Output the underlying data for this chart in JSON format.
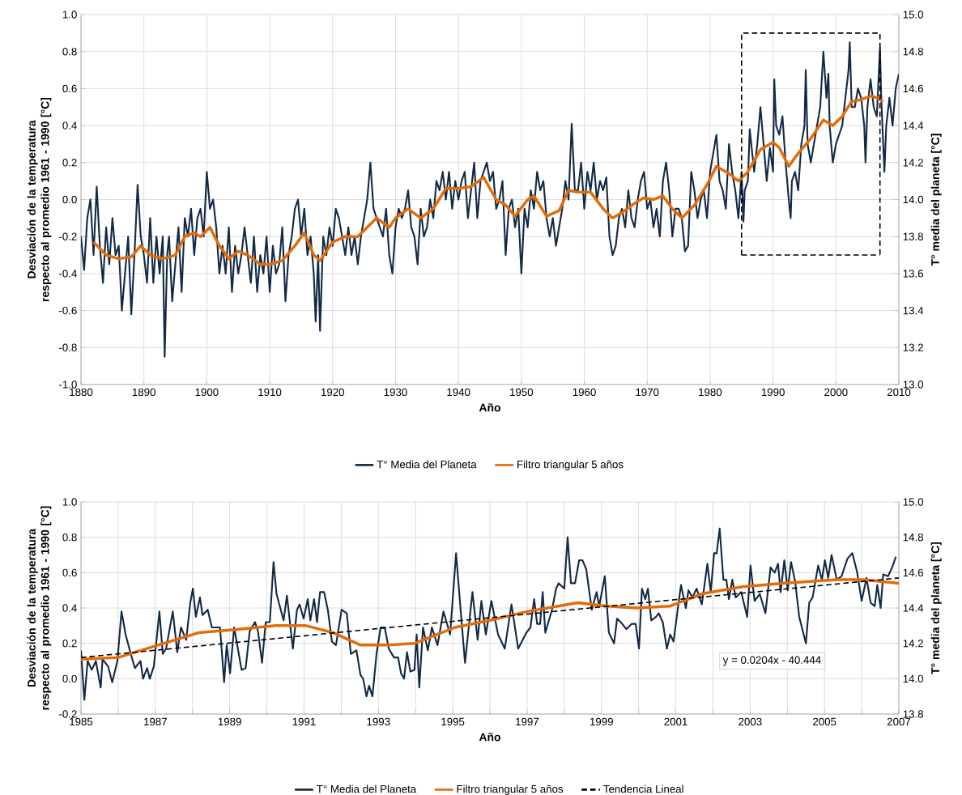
{
  "chart_data": [
    {
      "type": "line",
      "xlabel": "Año",
      "ylabel": "Desviación de la temperatura respecto al promedio 1961 - 1990 [°C]",
      "y2label": "T° media del planeta [°C]",
      "xlim": [
        1880,
        2010
      ],
      "xticks": [
        1880,
        1890,
        1900,
        1910,
        1920,
        1930,
        1940,
        1950,
        1960,
        1970,
        1980,
        1990,
        2000,
        2010
      ],
      "ylim": [
        -1,
        1
      ],
      "yticks": [
        {
          "value": -1,
          "label": "-1.0"
        },
        {
          "value": -0.8,
          "label": "-0.8"
        },
        {
          "value": -0.6,
          "label": "-0.6"
        },
        {
          "value": -0.4,
          "label": "-0.4"
        },
        {
          "value": -0.2,
          "label": "-0.2"
        },
        {
          "value": 0,
          "label": "0.0"
        },
        {
          "value": 0.2,
          "label": "0.2"
        },
        {
          "value": 0.4,
          "label": "0.4"
        },
        {
          "value": 0.6,
          "label": "0.6"
        },
        {
          "value": 0.8,
          "label": "0.8"
        },
        {
          "value": 1,
          "label": "1.0"
        }
      ],
      "y2lim": [
        13,
        15
      ],
      "y2ticks": [
        {
          "value": 13,
          "label": "13.0"
        },
        {
          "value": 13.2,
          "label": "13.2"
        },
        {
          "value": 13.4,
          "label": "13.4"
        },
        {
          "value": 13.6,
          "label": "13.6"
        },
        {
          "value": 13.8,
          "label": "13.8"
        },
        {
          "value": 14,
          "label": "14.0"
        },
        {
          "value": 14.2,
          "label": "14.2"
        },
        {
          "value": 14.4,
          "label": "14.4"
        },
        {
          "value": 14.6,
          "label": "14.6"
        },
        {
          "value": 14.8,
          "label": "14.8"
        },
        {
          "value": 15,
          "label": "15.0"
        }
      ],
      "grid": true,
      "legend": "bottom",
      "series": [
        {
          "name": "T° Media del Planeta",
          "color": "#132a47",
          "x": [
            1880,
            1880.5,
            1881,
            1881.5,
            1882,
            1882.5,
            1883,
            1883.5,
            1884,
            1884.5,
            1885,
            1885.5,
            1886,
            1886.5,
            1887,
            1887.5,
            1888,
            1888.5,
            1889,
            1889.5,
            1890,
            1890.5,
            1891,
            1891.5,
            1892,
            1892.5,
            1893,
            1893.3,
            1893.7,
            1894,
            1894.5,
            1895,
            1895.5,
            1896,
            1896.5,
            1897,
            1897.5,
            1898,
            1898.5,
            1899,
            1899.5,
            1900,
            1900.5,
            1901,
            1901.5,
            1902,
            1902.5,
            1903,
            1903.5,
            1904,
            1904.5,
            1905,
            1905.5,
            1906,
            1906.5,
            1907,
            1907.5,
            1908,
            1908.5,
            1909,
            1909.5,
            1910,
            1910.5,
            1911,
            1911.5,
            1912,
            1912.5,
            1913,
            1913.5,
            1914,
            1914.5,
            1915,
            1915.5,
            1916,
            1916.5,
            1917,
            1917.3,
            1917.7,
            1918,
            1918.5,
            1919,
            1919.5,
            1920,
            1920.5,
            1921,
            1921.5,
            1922,
            1922.5,
            1923,
            1923.5,
            1924,
            1924.5,
            1925,
            1925.5,
            1926,
            1926.5,
            1927,
            1927.5,
            1928,
            1928.5,
            1929,
            1929.5,
            1930,
            1930.5,
            1931,
            1931.5,
            1932,
            1932.5,
            1933,
            1933.5,
            1934,
            1934.5,
            1935,
            1935.5,
            1936,
            1936.5,
            1937,
            1937.5,
            1938,
            1938.5,
            1939,
            1939.5,
            1940,
            1940.5,
            1941,
            1941.5,
            1942,
            1942.5,
            1943,
            1943.5,
            1944,
            1944.5,
            1945,
            1945.5,
            1946,
            1946.5,
            1947,
            1947.5,
            1948,
            1948.5,
            1949,
            1949.5,
            1950,
            1950.5,
            1951,
            1951.5,
            1952,
            1952.5,
            1953,
            1953.5,
            1954,
            1954.5,
            1955,
            1955.5,
            1956,
            1956.5,
            1957,
            1957.5,
            1958,
            1958.5,
            1959,
            1959.5,
            1960,
            1960.5,
            1961,
            1961.5,
            1962,
            1962.5,
            1963,
            1963.5,
            1964,
            1964.5,
            1965,
            1965.5,
            1966,
            1966.5,
            1967,
            1967.5,
            1968,
            1968.5,
            1969,
            1969.5,
            1970,
            1970.5,
            1971,
            1971.5,
            1972,
            1972.5,
            1973,
            1973.5,
            1974,
            1974.5,
            1975,
            1975.5,
            1976,
            1976.5,
            1977,
            1977.5,
            1978,
            1978.5,
            1979,
            1979.5,
            1980,
            1980.5,
            1981,
            1981.5,
            1982,
            1982.5,
            1983,
            1983.5,
            1984,
            1984.5,
            1985,
            1985.3,
            1985.5,
            1986,
            1986.3,
            1987,
            1987.5,
            1988,
            1988.5,
            1989,
            1989.5,
            1990,
            1990.2,
            1990.5,
            1991,
            1991.5,
            1992,
            1992.5,
            1992.8,
            1993,
            1993.5,
            1994,
            1994.5,
            1995,
            1995.2,
            1995.5,
            1996,
            1996.5,
            1997,
            1997.5,
            1998,
            1998.5,
            1998.8,
            1999,
            1999.5,
            2000,
            2000.5,
            2001,
            2001.5,
            2002,
            2002.2,
            2002.5,
            2003,
            2003.5,
            2004,
            2004.5,
            2004.7,
            2005,
            2005.5,
            2006,
            2006.5,
            2007,
            2007.2,
            2007.7,
            2008,
            2008.5,
            2009,
            2009.5,
            2010
          ],
          "values": [
            -0.2,
            -0.38,
            -0.1,
            0.0,
            -0.3,
            0.07,
            -0.25,
            -0.45,
            -0.15,
            -0.35,
            -0.1,
            -0.3,
            -0.25,
            -0.6,
            -0.4,
            -0.2,
            -0.62,
            -0.3,
            0.08,
            -0.2,
            -0.3,
            -0.45,
            -0.1,
            -0.45,
            -0.2,
            -0.4,
            -0.2,
            -0.85,
            -0.3,
            -0.2,
            -0.55,
            -0.35,
            -0.15,
            -0.5,
            -0.1,
            -0.2,
            -0.05,
            -0.3,
            -0.1,
            -0.05,
            -0.2,
            0.15,
            -0.05,
            0.0,
            -0.15,
            -0.4,
            -0.25,
            -0.4,
            -0.15,
            -0.5,
            -0.25,
            -0.4,
            -0.3,
            -0.15,
            -0.3,
            -0.45,
            -0.2,
            -0.5,
            -0.3,
            -0.4,
            -0.2,
            -0.5,
            -0.25,
            -0.4,
            -0.35,
            -0.15,
            -0.55,
            -0.3,
            -0.2,
            -0.05,
            0.0,
            -0.2,
            -0.05,
            -0.3,
            -0.2,
            -0.4,
            -0.66,
            -0.3,
            -0.71,
            -0.2,
            -0.3,
            -0.15,
            -0.25,
            -0.05,
            -0.1,
            -0.2,
            -0.3,
            -0.15,
            -0.3,
            -0.2,
            -0.35,
            -0.2,
            -0.1,
            0.0,
            0.2,
            -0.05,
            -0.1,
            -0.15,
            -0.2,
            -0.05,
            -0.3,
            -0.4,
            -0.15,
            -0.05,
            -0.1,
            -0.05,
            0.05,
            -0.15,
            -0.2,
            -0.35,
            -0.05,
            -0.2,
            -0.15,
            0.0,
            -0.1,
            0.1,
            0.05,
            0.15,
            0.0,
            0.15,
            -0.05,
            0.1,
            0.0,
            0.1,
            0.15,
            -0.1,
            0.05,
            0.2,
            -0.1,
            0.1,
            0.15,
            0.2,
            0.1,
            0.15,
            -0.05,
            0.0,
            0.1,
            -0.3,
            -0.05,
            0.0,
            -0.15,
            -0.05,
            -0.4,
            -0.05,
            -0.15,
            0.05,
            -0.05,
            0.15,
            0.05,
            0.1,
            -0.1,
            -0.2,
            -0.1,
            -0.25,
            -0.15,
            -0.05,
            0.1,
            0.0,
            0.41,
            0.05,
            0.05,
            0.2,
            -0.05,
            0.15,
            0.05,
            0.2,
            0.0,
            0.1,
            0.05,
            0.12,
            -0.2,
            -0.3,
            -0.25,
            -0.1,
            -0.05,
            -0.15,
            0.05,
            -0.1,
            -0.15,
            0.0,
            0.1,
            0.15,
            -0.05,
            0.0,
            -0.15,
            -0.05,
            -0.2,
            0.1,
            0.2,
            0.05,
            -0.2,
            -0.05,
            -0.05,
            -0.1,
            -0.28,
            -0.25,
            0.15,
            0.05,
            -0.1,
            0.0,
            0.05,
            -0.1,
            0.15,
            0.25,
            0.35,
            0.1,
            0.05,
            -0.05,
            0.3,
            0.15,
            0.05,
            -0.1,
            0.15,
            -0.12,
            0.05,
            0.1,
            0.38,
            0.15,
            0.3,
            0.5,
            0.3,
            0.1,
            0.28,
            0.15,
            0.65,
            0.4,
            0.35,
            0.45,
            0.2,
            0.0,
            -0.1,
            0.1,
            0.15,
            0.05,
            0.3,
            0.4,
            0.7,
            0.3,
            0.2,
            0.3,
            0.4,
            0.5,
            0.8,
            0.55,
            0.68,
            0.4,
            0.2,
            0.3,
            0.35,
            0.4,
            0.55,
            0.7,
            0.85,
            0.5,
            0.5,
            0.6,
            0.55,
            0.4,
            0.2,
            0.5,
            0.65,
            0.5,
            0.45,
            0.82,
            0.55,
            0.15,
            0.4,
            0.55,
            0.4,
            0.6,
            0.68
          ]
        },
        {
          "name": "Filtro triangular 5 años",
          "color": "#e36c09",
          "x": [
            1882,
            1884,
            1886,
            1888,
            1889.5,
            1891,
            1893,
            1895,
            1896.5,
            1898,
            1899,
            1900.5,
            1902,
            1903.5,
            1905,
            1906.5,
            1908.5,
            1910,
            1912,
            1914,
            1915.5,
            1917,
            1918,
            1920,
            1922,
            1924,
            1925.5,
            1927,
            1929,
            1930,
            1932,
            1934,
            1936,
            1938,
            1940,
            1942,
            1944,
            1946,
            1947.5,
            1949,
            1951,
            1952,
            1954,
            1956,
            1957.5,
            1959,
            1961,
            1963,
            1964.5,
            1966,
            1968,
            1969.5,
            1971,
            1972.5,
            1974,
            1975.5,
            1977.5,
            1979.5,
            1981,
            1983,
            1984.5,
            1986,
            1988,
            1990,
            1991,
            1992.5,
            1994,
            1996,
            1998,
            1999.5,
            2001,
            2002.5,
            2004,
            2005.5,
            2006.5,
            2007.5
          ],
          "values": [
            -0.23,
            -0.3,
            -0.32,
            -0.31,
            -0.25,
            -0.3,
            -0.32,
            -0.3,
            -0.2,
            -0.18,
            -0.2,
            -0.15,
            -0.25,
            -0.32,
            -0.28,
            -0.3,
            -0.35,
            -0.35,
            -0.33,
            -0.25,
            -0.18,
            -0.3,
            -0.33,
            -0.23,
            -0.2,
            -0.2,
            -0.15,
            -0.1,
            -0.15,
            -0.1,
            -0.05,
            -0.1,
            -0.05,
            0.06,
            0.06,
            0.07,
            0.12,
            0.0,
            -0.03,
            -0.09,
            0.0,
            0.02,
            -0.09,
            -0.06,
            0.05,
            0.04,
            0.04,
            -0.05,
            -0.1,
            -0.07,
            -0.02,
            0.01,
            0.0,
            0.02,
            -0.05,
            -0.1,
            -0.03,
            0.08,
            0.18,
            0.14,
            0.1,
            0.15,
            0.27,
            0.31,
            0.28,
            0.18,
            0.25,
            0.33,
            0.43,
            0.4,
            0.45,
            0.53,
            0.54,
            0.56,
            0.55,
            0.53
          ]
        },
        {
          "type": "line",
          "color": "#000000",
          "line_style": "dashed",
          "x": [
            1985,
            1985,
            2007,
            2007
          ],
          "values": [
            -0.3,
            0.9,
            0.9,
            -0.3
          ]
        },
        {
          "type": "line",
          "color": "#000000",
          "line_style": "dashed",
          "x": [
            1985,
            2007
          ],
          "values": [
            -0.3,
            -0.3
          ]
        }
      ]
    },
    {
      "type": "line",
      "xlabel": "Año",
      "ylabel": "Desviación de la temperatura respecto al promedio 1961 - 1990 [°C]",
      "y2label": "T° media del planeta [°C]",
      "xlim": [
        1985,
        2007
      ],
      "xticks": [
        1985,
        {
          "value": 1986,
          "label": null
        },
        1987,
        {
          "value": 1988,
          "label": null
        },
        1989,
        {
          "value": 1990,
          "label": null
        },
        1991,
        {
          "value": 1992,
          "label": null
        },
        1993,
        {
          "value": 1994,
          "label": null
        },
        1995,
        {
          "value": 1996,
          "label": null
        },
        1997,
        {
          "value": 1998,
          "label": null
        },
        1999,
        {
          "value": 2000,
          "label": null
        },
        2001,
        {
          "value": 2002,
          "label": null
        },
        2003,
        {
          "value": 2004,
          "label": null
        },
        2005,
        {
          "value": 2006,
          "label": null
        },
        2007
      ],
      "ylim": [
        -0.2,
        1
      ],
      "yticks": [
        {
          "value": -0.2,
          "label": "-0.2"
        },
        {
          "value": 0,
          "label": "0.0"
        },
        {
          "value": 0.2,
          "label": "0.2"
        },
        {
          "value": 0.4,
          "label": "0.4"
        },
        {
          "value": 0.6,
          "label": "0.6"
        },
        {
          "value": 0.8,
          "label": "0.8"
        },
        {
          "value": 1,
          "label": "1.0"
        }
      ],
      "y2lim": [
        13.8,
        15
      ],
      "y2ticks": [
        {
          "value": 13.8,
          "label": "13.8"
        },
        {
          "value": 14,
          "label": "14.0"
        },
        {
          "value": 14.2,
          "label": "14.2"
        },
        {
          "value": 14.4,
          "label": "14.4"
        },
        {
          "value": 14.6,
          "label": "14.6"
        },
        {
          "value": 14.8,
          "label": "14.8"
        },
        {
          "value": 15,
          "label": "15.0"
        }
      ],
      "grid": true,
      "legend": "bottom",
      "annotations": [
        "y = 0.0204x - 40.444"
      ],
      "series": [
        {
          "name": "T° Media del Planeta",
          "color": "#132a47",
          "x": [
            1985.0,
            1985.09,
            1985.18,
            1985.29,
            1985.4,
            1985.53,
            1985.58,
            1985.73,
            1985.84,
            1985.98,
            1986.09,
            1986.2,
            1986.34,
            1986.45,
            1986.6,
            1986.67,
            1986.78,
            1986.85,
            1986.96,
            1987.11,
            1987.2,
            1987.29,
            1987.47,
            1987.59,
            1987.69,
            1987.83,
            1987.94,
            1988.01,
            1988.09,
            1988.2,
            1988.27,
            1988.41,
            1988.52,
            1988.74,
            1988.85,
            1988.92,
            1989.01,
            1989.12,
            1989.32,
            1989.43,
            1989.54,
            1989.68,
            1989.76,
            1989.87,
            1989.97,
            1990.08,
            1990.18,
            1990.26,
            1990.45,
            1990.54,
            1990.7,
            1990.81,
            1990.88,
            1990.99,
            1991.1,
            1991.17,
            1991.27,
            1991.35,
            1991.43,
            1991.54,
            1991.64,
            1991.75,
            1991.86,
            1992.01,
            1992.15,
            1992.26,
            1992.41,
            1992.52,
            1992.59,
            1992.68,
            1992.75,
            1992.84,
            1992.95,
            1993.06,
            1993.17,
            1993.28,
            1993.42,
            1993.53,
            1993.61,
            1993.69,
            1993.77,
            1993.86,
            1993.97,
            1994.03,
            1994.1,
            1994.2,
            1994.33,
            1994.44,
            1994.59,
            1994.75,
            1994.93,
            1995.09,
            1995.2,
            1995.33,
            1995.53,
            1995.67,
            1995.77,
            1995.89,
            1996.04,
            1996.22,
            1996.4,
            1996.58,
            1996.76,
            1996.98,
            1997.09,
            1997.19,
            1997.27,
            1997.35,
            1997.42,
            1997.49,
            1997.67,
            1997.78,
            1997.85,
            1998.0,
            1998.09,
            1998.18,
            1998.29,
            1998.4,
            1998.49,
            1998.59,
            1998.74,
            1998.87,
            1998.94,
            1999.09,
            1999.2,
            1999.34,
            1999.42,
            1999.52,
            1999.67,
            1999.81,
            1999.92,
            2000.01,
            2000.09,
            2000.18,
            2000.25,
            2000.34,
            2000.47,
            2000.54,
            2000.65,
            2000.76,
            2000.85,
            2000.94,
            2001.05,
            2001.14,
            2001.27,
            2001.34,
            2001.45,
            2001.56,
            2001.7,
            2001.85,
            2001.94,
            2002.03,
            2002.1,
            2002.18,
            2002.28,
            2002.36,
            2002.43,
            2002.52,
            2002.61,
            2002.76,
            2002.92,
            2003.01,
            2003.12,
            2003.26,
            2003.41,
            2003.55,
            2003.66,
            2003.75,
            2003.82,
            2003.92,
            2004.01,
            2004.1,
            2004.21,
            2004.32,
            2004.5,
            2004.59,
            2004.68,
            2004.83,
            2004.93,
            2005.01,
            2005.1,
            2005.19,
            2005.33,
            2005.46,
            2005.62,
            2005.75,
            2005.88,
            2006.0,
            2006.13,
            2006.24,
            2006.35,
            2006.42,
            2006.51,
            2006.58,
            2006.71,
            2006.82,
            2006.92
          ],
          "values": [
            0.16,
            -0.12,
            0.1,
            0.05,
            0.1,
            -0.05,
            0.11,
            0.07,
            -0.02,
            0.1,
            0.38,
            0.25,
            0.14,
            0.06,
            0.1,
            0.0,
            0.06,
            0.0,
            0.07,
            0.38,
            0.14,
            0.17,
            0.38,
            0.15,
            0.29,
            0.22,
            0.43,
            0.51,
            0.35,
            0.46,
            0.36,
            0.39,
            0.29,
            0.29,
            -0.02,
            0.19,
            0.03,
            0.29,
            0.05,
            0.06,
            0.27,
            0.32,
            0.27,
            0.09,
            0.32,
            0.32,
            0.66,
            0.48,
            0.33,
            0.47,
            0.17,
            0.39,
            0.42,
            0.34,
            0.45,
            0.33,
            0.45,
            0.32,
            0.49,
            0.49,
            0.39,
            0.21,
            0.19,
            0.39,
            0.37,
            0.14,
            0.16,
            0.02,
            0.0,
            -0.1,
            -0.04,
            -0.1,
            0.14,
            0.29,
            0.29,
            0.17,
            0.12,
            0.12,
            0.03,
            0.0,
            0.15,
            0.04,
            0.05,
            0.25,
            -0.05,
            0.29,
            0.16,
            0.29,
            0.19,
            0.38,
            0.25,
            0.71,
            0.42,
            0.09,
            0.49,
            0.22,
            0.44,
            0.25,
            0.44,
            0.25,
            0.17,
            0.42,
            0.17,
            0.26,
            0.29,
            0.45,
            0.31,
            0.31,
            0.49,
            0.26,
            0.39,
            0.51,
            0.54,
            0.51,
            0.8,
            0.54,
            0.54,
            0.67,
            0.67,
            0.62,
            0.39,
            0.49,
            0.41,
            0.58,
            0.26,
            0.2,
            0.34,
            0.32,
            0.28,
            0.31,
            0.31,
            0.17,
            0.51,
            0.45,
            0.51,
            0.33,
            0.35,
            0.37,
            0.32,
            0.17,
            0.25,
            0.21,
            0.39,
            0.53,
            0.4,
            0.5,
            0.46,
            0.51,
            0.42,
            0.65,
            0.49,
            0.71,
            0.71,
            0.85,
            0.56,
            0.56,
            0.45,
            0.56,
            0.46,
            0.49,
            0.35,
            0.64,
            0.44,
            0.48,
            0.37,
            0.63,
            0.6,
            0.65,
            0.49,
            0.67,
            0.5,
            0.66,
            0.55,
            0.35,
            0.2,
            0.43,
            0.46,
            0.64,
            0.56,
            0.67,
            0.57,
            0.7,
            0.56,
            0.58,
            0.68,
            0.71,
            0.6,
            0.44,
            0.57,
            0.43,
            0.41,
            0.53,
            0.4,
            0.59,
            0.58,
            0.63,
            0.69
          ]
        },
        {
          "name": "Filtro triangular 5 años",
          "color": "#e36c09",
          "x": [
            1985.0,
            1986.0,
            1987.07,
            1988.16,
            1989.25,
            1990.23,
            1991.06,
            1991.79,
            1992.52,
            1993.24,
            1993.97,
            1995.06,
            1996.0,
            1997.0,
            1998.36,
            1999.16,
            1999.96,
            2000.83,
            2001.7,
            2002.79,
            2003.88,
            2005.33,
            2006.06,
            2007.0
          ],
          "values": [
            0.11,
            0.12,
            0.19,
            0.26,
            0.28,
            0.3,
            0.3,
            0.26,
            0.19,
            0.19,
            0.2,
            0.29,
            0.33,
            0.38,
            0.43,
            0.41,
            0.4,
            0.41,
            0.48,
            0.52,
            0.54,
            0.56,
            0.56,
            0.54
          ]
        },
        {
          "name": "Tendencia Lineal",
          "type": "line",
          "color": "#000000",
          "line_style": "dashed",
          "x": [
            1985,
            2007
          ],
          "values": [
            0.12,
            0.57
          ]
        }
      ]
    }
  ]
}
